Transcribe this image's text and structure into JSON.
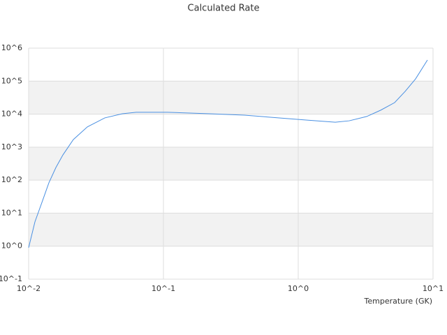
{
  "chart_data": {
    "type": "line",
    "title": "Calculated Rate",
    "x_label": "Temperature (GK)",
    "log_x": true,
    "log_y": true,
    "grid": true,
    "band_color": "#f2f2f2",
    "grid_color": "#dddddd",
    "xlim": [
      0.01,
      10
    ],
    "ylim": [
      0.1,
      1000000
    ],
    "xticks": [
      {
        "value": 0.01,
        "label": "10^-2"
      },
      {
        "value": 0.1,
        "label": "10^-1"
      },
      {
        "value": 1,
        "label": "10^0"
      },
      {
        "value": 10,
        "label": "10^1"
      }
    ],
    "yticks": [
      {
        "value": 0.1,
        "label": "10^-1"
      },
      {
        "value": 1,
        "label": "10^0"
      },
      {
        "value": 10,
        "label": "10^1"
      },
      {
        "value": 100,
        "label": "10^2"
      },
      {
        "value": 1000,
        "label": "10^3"
      },
      {
        "value": 10000,
        "label": "10^4"
      },
      {
        "value": 100000,
        "label": "10^5"
      },
      {
        "value": 1000000,
        "label": "10^6"
      }
    ],
    "x": [
      0.01,
      0.01114,
      0.01254,
      0.01413,
      0.01592,
      0.01795,
      0.02146,
      0.02723,
      0.03672,
      0.04948,
      0.0628,
      0.1074,
      0.2198,
      0.399,
      0.7244,
      1.167,
      1.884,
      2.39,
      3.22,
      4.09,
      5.19,
      6.21,
      7.42,
      9.09
    ],
    "series": [
      {
        "color": "#4a90e2",
        "values": [
          0.9,
          5.5,
          21,
          83,
          240,
          580,
          1700,
          4100,
          7700,
          10300,
          11400,
          11400,
          10300,
          9300,
          7700,
          6600,
          5700,
          6300,
          8500,
          13200,
          22400,
          49000,
          117000,
          437000
        ]
      }
    ]
  }
}
